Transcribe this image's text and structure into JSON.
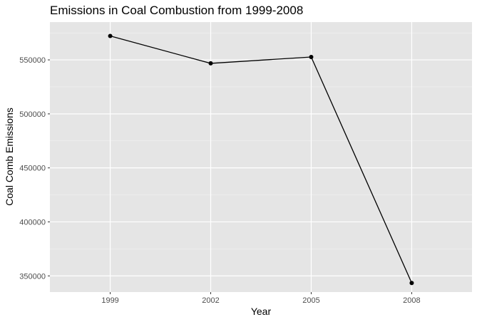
{
  "chart_data": {
    "type": "line",
    "title": "Emissions in Coal Combustion from 1999-2008",
    "xlabel": "Year",
    "ylabel": "Coal Comb Emissions",
    "x": [
      1999,
      2002,
      2005,
      2008
    ],
    "x_tick_labels": [
      "1999",
      "2002",
      "2005",
      "2008"
    ],
    "y_ticks": [
      350000,
      400000,
      450000,
      500000,
      550000
    ],
    "y_tick_labels": [
      "350000",
      "400000",
      "450000",
      "500000",
      "550000"
    ],
    "xlim": [
      1997.2,
      2009.8
    ],
    "ylim": [
      335000,
      585000
    ],
    "series": [
      {
        "values": [
          572126,
          546789,
          552675,
          343432
        ]
      }
    ],
    "grid": true,
    "legend": "none",
    "colors": {
      "panel_background": "#e5e5e5",
      "grid_major": "#ffffff",
      "grid_minor": "#f2f2f2",
      "line": "#000000",
      "point": "#000000"
    }
  }
}
